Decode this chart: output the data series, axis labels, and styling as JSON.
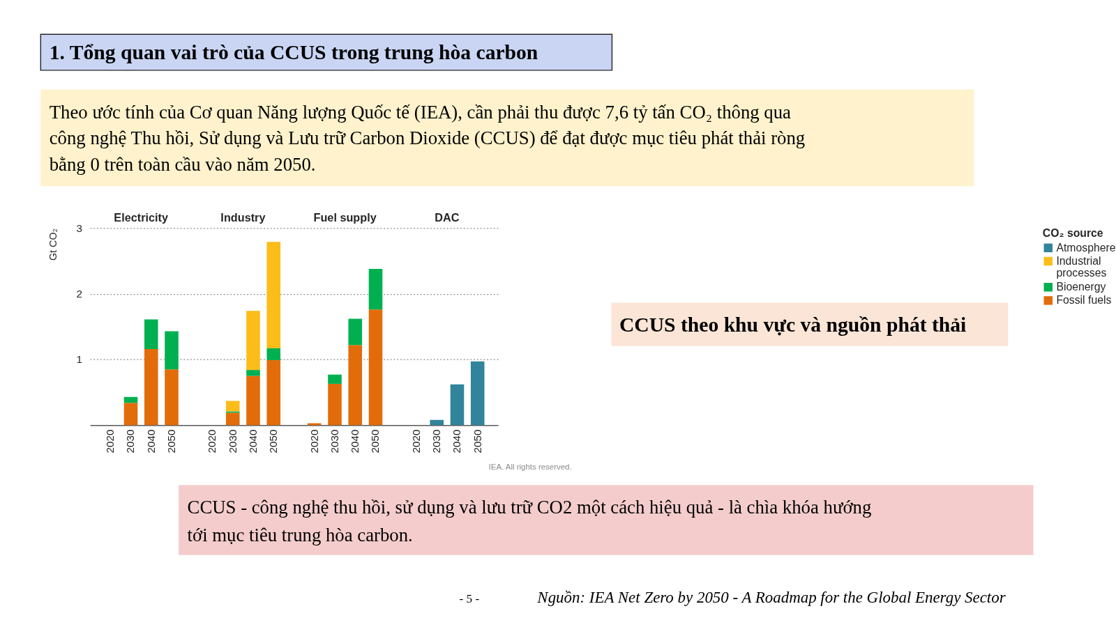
{
  "chart_data": [
    {
      "type": "other",
      "title": "1. Tổng quan vai trò của CCUS trong trung hòa carbon",
      "annotations": [
        "Theo ước tính của Cơ quan Năng lượng Quốc tế (IEA), cần phải thu được 7,6 tỷ tấn CO₂ thông qua công nghệ Thu hồi, Sử dụng và Lưu trữ Carbon Dioxide (CCUS) để đạt được mục tiêu phát thải ròng bằng 0 trên toàn cầu vào năm 2050."
      ]
    },
    {
      "type": "bar",
      "ylabel": "Gt CO₂",
      "categories": [
        "2020",
        "2030",
        "2040",
        "2050",
        "2020",
        "2030",
        "2040",
        "2050",
        "2020",
        "2030",
        "2040",
        "2050",
        "2020",
        "2030",
        "2040",
        "2050"
      ],
      "series": [
        {
          "name": "Fossil fuels",
          "color": "#e36c0a",
          "values": [
            null,
            0.34,
            1.16,
            0.85,
            null,
            0.19,
            0.75,
            0.99,
            0.03,
            0.63,
            1.22,
            1.76,
            null,
            null,
            null,
            null
          ]
        },
        {
          "name": "Bioenergy",
          "color": "#00b050",
          "values": [
            null,
            0.09,
            0.45,
            0.58,
            null,
            0.02,
            0.09,
            0.18,
            null,
            0.14,
            0.4,
            0.62,
            null,
            null,
            null,
            null
          ]
        },
        {
          "name": "Industrial processes",
          "color": "#fbbd19",
          "values": [
            null,
            null,
            null,
            null,
            null,
            0.16,
            0.9,
            1.62,
            null,
            null,
            null,
            null,
            null,
            null,
            null,
            null
          ]
        },
        {
          "name": "Atmosphere",
          "color": "#31849b",
          "values": [
            null,
            null,
            null,
            null,
            null,
            null,
            null,
            null,
            null,
            null,
            null,
            null,
            null,
            0.08,
            0.62,
            0.97
          ]
        }
      ],
      "stacked": true,
      "ylim": [
        0,
        3
      ],
      "yticks": [
        1,
        2,
        3
      ],
      "grid": "y",
      "legend": "right",
      "legend_title": "CO₂ source",
      "annotations": [
        "Electricity",
        "Industry",
        "Fuel supply",
        "DAC",
        "IEA. All rights reserved."
      ]
    },
    {
      "type": "other",
      "annotations": [
        "CCUS theo khu vực và nguồn phát thải"
      ]
    },
    {
      "type": "other",
      "annotations": [
        "CCUS - công nghệ thu hồi, sử dụng và lưu trữ CO2 một cách hiệu quả - là chìa khóa hướng tới mục tiêu trung hòa carbon.",
        "- 5 -",
        "Nguồn: IEA Net Zero by 2050 - A Roadmap for the Global Energy Sector"
      ]
    }
  ]
}
